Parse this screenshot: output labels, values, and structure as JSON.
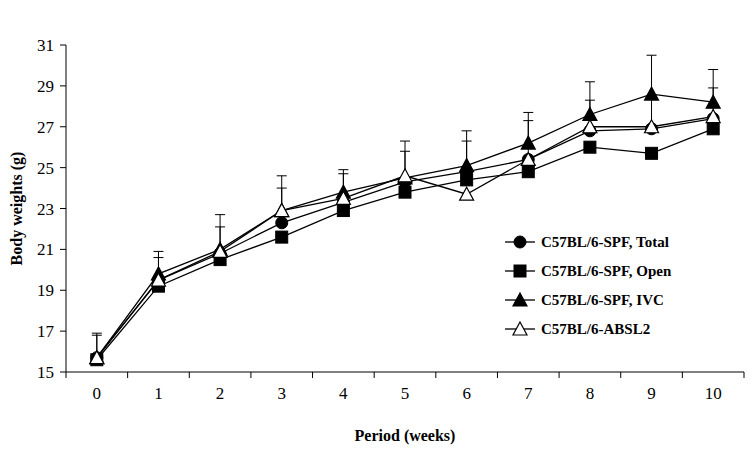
{
  "chart_data": {
    "type": "line",
    "x_label": "Period (weeks)",
    "y_label": "Body weights (g)",
    "categories": [
      "0",
      "1",
      "2",
      "3",
      "4",
      "5",
      "6",
      "7",
      "8",
      "9",
      "10"
    ],
    "ylim": [
      15,
      31
    ],
    "yticks": [
      15,
      17,
      19,
      21,
      23,
      25,
      27,
      29,
      31
    ],
    "legend": "right",
    "grid": false,
    "series": [
      {
        "name": "C57BL/6-SPF, Total",
        "color": "#000000",
        "marker": "circle",
        "values": [
          15.7,
          19.5,
          20.8,
          22.3,
          23.3,
          24.3,
          24.8,
          25.4,
          26.8,
          26.9,
          27.4
        ],
        "errors": [
          1.1,
          1.1,
          1.3,
          1.7,
          1.4,
          1.5,
          1.5,
          1.9,
          1.5,
          1.6,
          1.5
        ]
      },
      {
        "name": "C57BL/6-SPF, Open",
        "color": "#000000",
        "marker": "square",
        "values": [
          15.6,
          19.2,
          20.5,
          21.6,
          22.9,
          23.8,
          24.4,
          24.8,
          26.0,
          25.7,
          26.9
        ]
      },
      {
        "name": "C57BL/6-SPF, IVC",
        "color": "#000000",
        "marker": "triangle",
        "values": [
          15.7,
          19.8,
          21.0,
          22.9,
          23.8,
          24.5,
          25.1,
          26.2,
          27.6,
          28.6,
          28.2
        ],
        "errors": [
          1.2,
          1.1,
          1.7,
          1.7,
          1.1,
          1.8,
          1.7,
          1.5,
          1.6,
          1.9,
          1.6
        ]
      },
      {
        "name": "C57BL/6-ABSL2",
        "color": "#000000",
        "marker": "triangle-open",
        "values": [
          15.7,
          19.5,
          20.9,
          22.9,
          23.5,
          24.6,
          23.7,
          25.4,
          27.0,
          27.0,
          27.5
        ]
      }
    ]
  }
}
